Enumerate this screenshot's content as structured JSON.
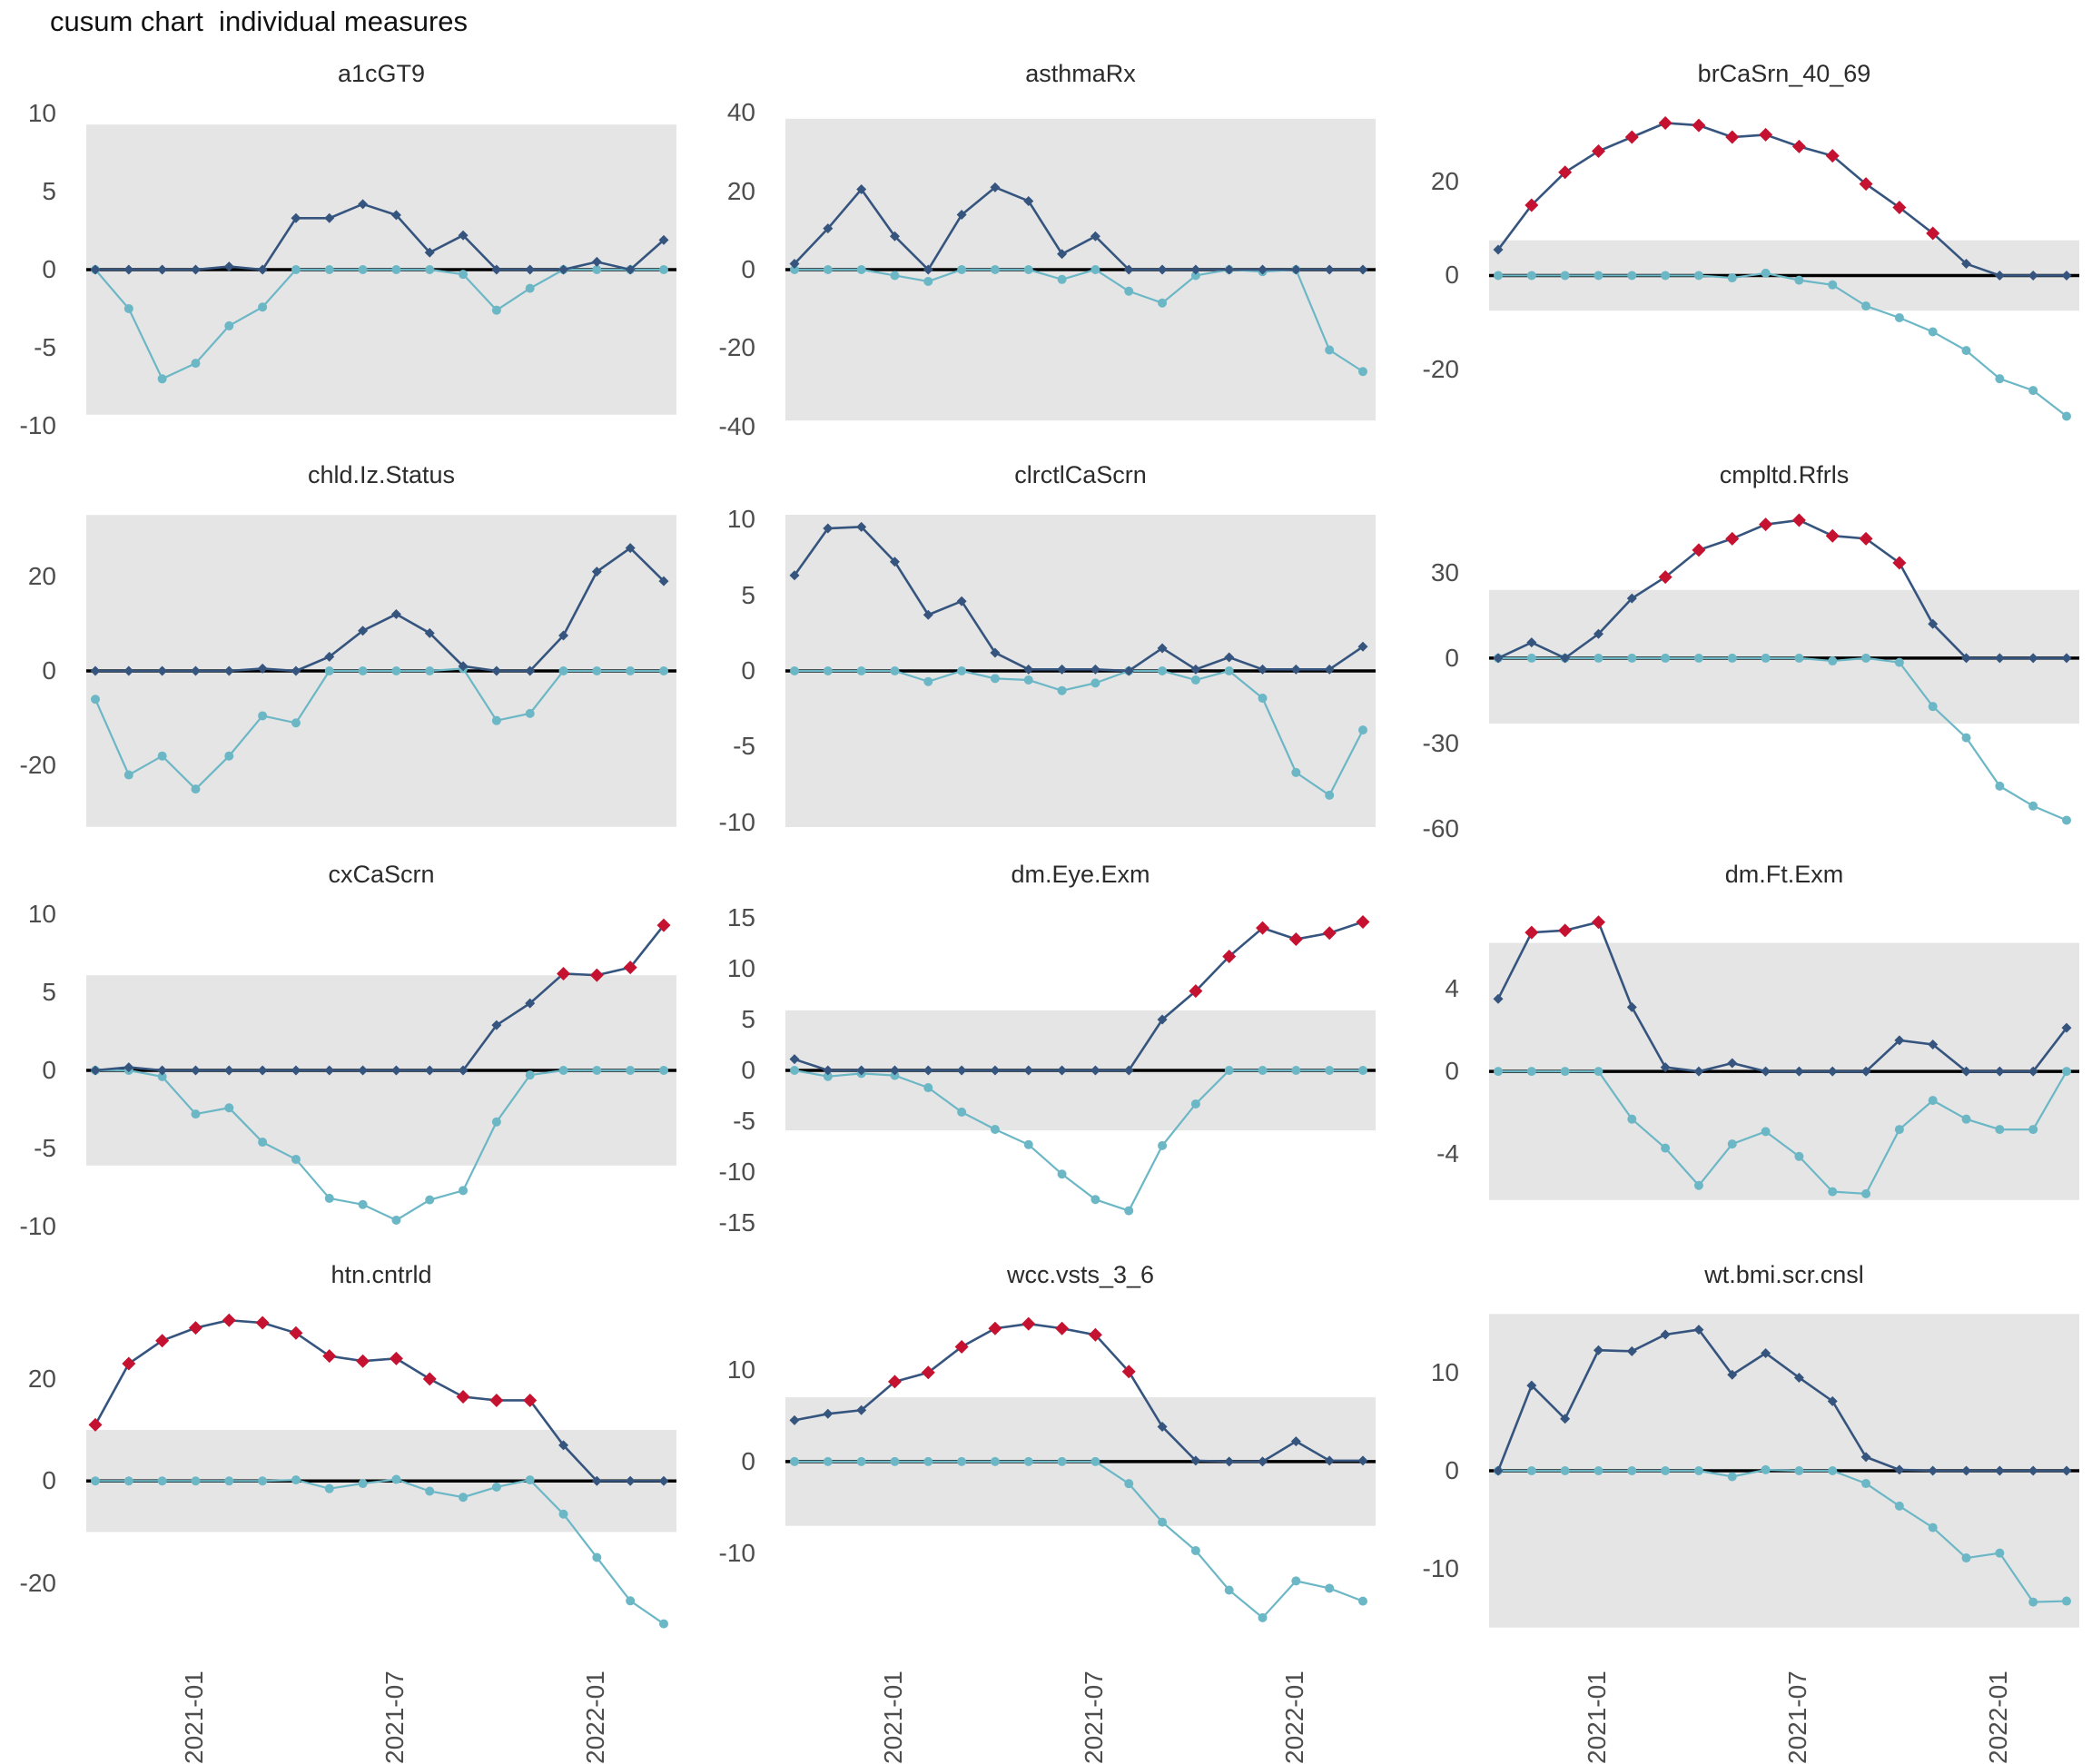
{
  "page_title": "cusum chart  individual measures",
  "colors": {
    "upper_series": "#35547E",
    "lower_series": "#6CB7C6",
    "flag_point": "#C51230",
    "control_band": "#E5E5E5",
    "zero_line": "#000000",
    "axis_text": "#4D4D4D",
    "title_text": "#111111"
  },
  "x_axis": {
    "tick_labels": [
      "2021-01",
      "2021-07",
      "2022-01"
    ],
    "tick_point_indices": [
      3,
      9,
      15
    ],
    "points_per_series": 18,
    "labels_shown_on_bottom_row_only": true
  },
  "chart_data": [
    {
      "type": "line",
      "title": "a1cGT9",
      "ylim": [
        -10.3,
        10.3
      ],
      "yticks": [
        10,
        5,
        0,
        -5,
        -10
      ],
      "control_band": [
        -9.3,
        9.3
      ],
      "upper_cusum": [
        0,
        0,
        0,
        0,
        0.2,
        0,
        3.3,
        3.3,
        4.2,
        3.5,
        1.1,
        2.2,
        0,
        0,
        0,
        0.5,
        0,
        1.9
      ],
      "lower_cusum": [
        0,
        -2.5,
        -7,
        -6,
        -3.6,
        -2.4,
        0,
        0,
        0,
        0,
        0,
        -0.3,
        -2.6,
        -1.2,
        0,
        0,
        0,
        0
      ],
      "flag_indices": []
    },
    {
      "type": "line",
      "title": "asthmaRx",
      "ylim": [
        -41,
        41
      ],
      "yticks": [
        40,
        20,
        0,
        -20,
        -40
      ],
      "control_band": [
        -38.5,
        38.5
      ],
      "upper_cusum": [
        1.5,
        10.5,
        20.5,
        8.5,
        0,
        14,
        21,
        17.5,
        4,
        8.5,
        0,
        0,
        0,
        0,
        0,
        0,
        0,
        0
      ],
      "lower_cusum": [
        0,
        0,
        0,
        -1.5,
        -3,
        0,
        0,
        0,
        -2.5,
        0,
        -5.5,
        -8.5,
        -1.5,
        0,
        -0.5,
        0,
        -20.5,
        -26
      ],
      "flag_indices": []
    },
    {
      "type": "line",
      "title": "brCaSrn_40_69",
      "ylim": [
        -33,
        35.5
      ],
      "yticks": [
        20,
        0,
        -20
      ],
      "control_band": [
        -7.5,
        7.5
      ],
      "upper_cusum": [
        5.5,
        15,
        22,
        26.5,
        29.5,
        32.5,
        32,
        29.5,
        30,
        27.5,
        25.5,
        19.5,
        14.5,
        9,
        2.5,
        0,
        0,
        0
      ],
      "lower_cusum": [
        0,
        0,
        0,
        0,
        0,
        0,
        0,
        -0.5,
        0.5,
        -1,
        -2,
        -6.5,
        -9,
        -12,
        -16,
        -22,
        -24.5,
        -30
      ],
      "flag_indices": [
        1,
        2,
        3,
        4,
        5,
        6,
        7,
        8,
        9,
        10,
        11,
        12,
        13
      ]
    },
    {
      "type": "line",
      "title": "chld.Iz.Status",
      "ylim": [
        -34,
        34
      ],
      "yticks": [
        20,
        0,
        -20
      ],
      "control_band": [
        -33,
        33
      ],
      "upper_cusum": [
        0,
        0,
        0,
        0,
        0,
        0.5,
        0,
        3,
        8.5,
        12,
        8,
        1,
        0,
        0,
        7.5,
        21,
        26,
        19
      ],
      "lower_cusum": [
        -6,
        -22,
        -18,
        -25,
        -18,
        -9.5,
        -11,
        0,
        0,
        0,
        0,
        0.5,
        -10.5,
        -9,
        0,
        0,
        0,
        0
      ],
      "flag_indices": []
    },
    {
      "type": "line",
      "title": "clrctlCaScrn",
      "ylim": [
        -10.6,
        10.6
      ],
      "yticks": [
        10,
        5,
        0,
        -5,
        -10
      ],
      "control_band": [
        -10.3,
        10.3
      ],
      "upper_cusum": [
        6.3,
        9.4,
        9.5,
        7.2,
        3.7,
        4.6,
        1.2,
        0.1,
        0.1,
        0.1,
        0,
        1.5,
        0.1,
        0.9,
        0.1,
        0.1,
        0.1,
        1.6
      ],
      "lower_cusum": [
        0,
        0,
        0,
        0,
        -0.7,
        0,
        -0.5,
        -0.6,
        -1.3,
        -0.8,
        0,
        0,
        -0.6,
        0,
        -1.8,
        -6.7,
        -8.2,
        -3.9
      ],
      "flag_indices": []
    },
    {
      "type": "line",
      "title": "cmpltd.Rfrls",
      "ylim": [
        -61,
        52
      ],
      "yticks": [
        30,
        0,
        -30,
        -60
      ],
      "control_band": [
        -23,
        24
      ],
      "upper_cusum": [
        0,
        5.5,
        0,
        8.5,
        21,
        28.5,
        38,
        42,
        47,
        48.5,
        43,
        42,
        33.5,
        12,
        0,
        0,
        0,
        0
      ],
      "lower_cusum": [
        0,
        0,
        0,
        0,
        0,
        0,
        0,
        0,
        0,
        0,
        -1,
        0,
        -1.5,
        -17,
        -28,
        -45,
        -52,
        -57
      ],
      "flag_indices": [
        5,
        6,
        7,
        8,
        9,
        10,
        11,
        12
      ]
    },
    {
      "type": "line",
      "title": "cxCaScrn",
      "ylim": [
        -10.3,
        10.3
      ],
      "yticks": [
        10,
        5,
        0,
        -5,
        -10
      ],
      "control_band": [
        -6.1,
        6.1
      ],
      "upper_cusum": [
        0,
        0.2,
        0,
        0,
        0,
        0,
        0,
        0,
        0,
        0,
        0,
        0,
        2.9,
        4.3,
        6.2,
        6.1,
        6.6,
        9.3
      ],
      "lower_cusum": [
        0,
        0,
        -0.4,
        -2.8,
        -2.4,
        -4.6,
        -5.7,
        -8.2,
        -8.6,
        -9.6,
        -8.3,
        -7.7,
        -3.3,
        -0.3,
        0,
        0,
        0,
        0
      ],
      "flag_indices": [
        14,
        15,
        16,
        17
      ]
    },
    {
      "type": "line",
      "title": "dm.Eye.Exm",
      "ylim": [
        -15.8,
        15.8
      ],
      "yticks": [
        15,
        10,
        5,
        0,
        -5,
        -10,
        -15
      ],
      "control_band": [
        -5.9,
        5.9
      ],
      "upper_cusum": [
        1.1,
        0,
        0,
        0,
        0,
        0,
        0,
        0,
        0,
        0,
        0,
        5,
        7.8,
        11.2,
        14,
        12.9,
        13.5,
        14.6
      ],
      "lower_cusum": [
        0,
        -0.6,
        -0.3,
        -0.5,
        -1.7,
        -4.1,
        -5.8,
        -7.3,
        -10.2,
        -12.7,
        -13.8,
        -7.4,
        -3.3,
        0,
        0,
        0,
        0,
        0
      ],
      "flag_indices": [
        12,
        13,
        14,
        15,
        16,
        17
      ]
    },
    {
      "type": "line",
      "title": "dm.Ft.Exm",
      "ylim": [
        -7.7,
        7.8
      ],
      "yticks": [
        4,
        0,
        -4
      ],
      "control_band": [
        -6.2,
        6.2
      ],
      "upper_cusum": [
        3.5,
        6.7,
        6.8,
        7.2,
        3.1,
        0.2,
        0,
        0.4,
        0,
        0,
        0,
        0,
        1.5,
        1.3,
        0,
        0,
        0,
        2.1
      ],
      "lower_cusum": [
        0,
        0,
        0,
        0,
        -2.3,
        -3.7,
        -5.5,
        -3.5,
        -2.9,
        -4.1,
        -5.8,
        -5.9,
        -2.8,
        -1.4,
        -2.3,
        -2.8,
        -2.8,
        0
      ],
      "flag_indices": [
        1,
        2,
        3
      ]
    },
    {
      "type": "line",
      "title": "htn.cntrld",
      "ylim": [
        -29.5,
        33.5
      ],
      "yticks": [
        20,
        0,
        -20
      ],
      "control_band": [
        -10,
        10
      ],
      "upper_cusum": [
        11,
        23,
        27.5,
        30,
        31.5,
        31,
        29,
        24.5,
        23.5,
        24,
        20,
        16.5,
        15.8,
        15.8,
        7,
        0,
        0,
        0
      ],
      "lower_cusum": [
        0,
        0,
        0,
        0,
        0,
        0,
        0.2,
        -1.5,
        -0.5,
        0.3,
        -2,
        -3.2,
        -1.2,
        0.2,
        -6.5,
        -15,
        -23.5,
        -28
      ],
      "flag_indices": [
        0,
        1,
        2,
        3,
        4,
        5,
        6,
        7,
        8,
        9,
        10,
        11,
        12,
        13
      ]
    },
    {
      "type": "line",
      "title": "wcc.vsts_3_6",
      "ylim": [
        -18.5,
        16.5
      ],
      "yticks": [
        10,
        0,
        -10
      ],
      "control_band": [
        -7,
        7
      ],
      "upper_cusum": [
        4.5,
        5.2,
        5.6,
        8.7,
        9.7,
        12.5,
        14.5,
        15,
        14.5,
        13.8,
        9.8,
        3.8,
        0.1,
        0,
        0,
        2.2,
        0.1,
        0.1
      ],
      "lower_cusum": [
        0,
        0,
        0,
        0,
        0,
        0,
        0,
        0,
        0,
        0,
        -2.4,
        -6.6,
        -9.7,
        -14,
        -17,
        -13,
        -13.8,
        -15.2
      ],
      "flag_indices": [
        3,
        4,
        5,
        6,
        7,
        8,
        9,
        10
      ]
    },
    {
      "type": "line",
      "title": "wt.bmi.scr.cnsl",
      "ylim": [
        -16.4,
        16.4
      ],
      "yticks": [
        10,
        0,
        -10
      ],
      "control_band": [
        -16,
        16
      ],
      "upper_cusum": [
        0,
        8.7,
        5.3,
        12.3,
        12.2,
        13.9,
        14.4,
        9.8,
        12,
        9.5,
        7.1,
        1.4,
        0.1,
        0,
        0,
        0,
        0,
        0
      ],
      "lower_cusum": [
        0,
        0,
        0,
        0,
        0,
        0,
        0,
        -0.6,
        0.1,
        0,
        0,
        -1.3,
        -3.6,
        -5.8,
        -8.9,
        -8.4,
        -13.4,
        -13.3
      ],
      "flag_indices": []
    }
  ]
}
